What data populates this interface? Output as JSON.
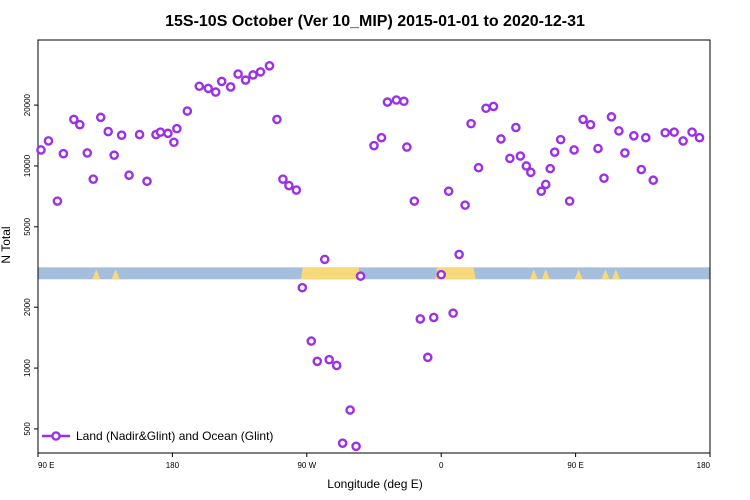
{
  "chart_data": {
    "type": "scatter",
    "title": "15S-10S October (Ver 10_MIP)   2015-01-01 to 2020-12-31",
    "xlabel": "Longitude (deg E)",
    "ylabel": "N Total",
    "x_axis_note": "longitude unwrapped from 90 E: values above 180 continue eastward past the dateline (270 = 90 W, 360 = 0, 450 = 90 E, 540 = 180)",
    "xlim": [
      90,
      540
    ],
    "ylim_log": [
      380,
      42000
    ],
    "y_scale": "log",
    "x_ticks": [
      {
        "value": 90,
        "label": "90 E"
      },
      {
        "value": 180,
        "label": "180"
      },
      {
        "value": 270,
        "label": "90 W"
      },
      {
        "value": 360,
        "label": "0"
      },
      {
        "value": 450,
        "label": "90 E"
      },
      {
        "value": 540,
        "label": "180"
      }
    ],
    "y_ticks": [
      {
        "value": 500,
        "label": "500"
      },
      {
        "value": 1000,
        "label": "1000"
      },
      {
        "value": 2000,
        "label": "2000"
      },
      {
        "value": 5000,
        "label": "5000"
      },
      {
        "value": 10000,
        "label": "10000"
      },
      {
        "value": 20000,
        "label": "20000"
      }
    ],
    "colors": {
      "points": "#9b30e8",
      "ocean_band": "#a5bedc",
      "land_band": "#f7d97c"
    },
    "band": {
      "y_range": [
        2750,
        3150
      ],
      "land_ranges": [
        [
          266,
          306
        ],
        [
          356,
          383
        ]
      ],
      "land_bumps": [
        129,
        142,
        422,
        430,
        452,
        470,
        477
      ]
    },
    "legend": {
      "position": "bottom-left",
      "label": "Land (Nadir&Glint) and Ocean (Glint)"
    },
    "series": [
      {
        "name": "Land (Nadir&Glint) and Ocean (Glint)",
        "points": [
          [
            92,
            12000
          ],
          [
            97,
            13300
          ],
          [
            103,
            6700
          ],
          [
            107,
            11500
          ],
          [
            114,
            17000
          ],
          [
            118,
            16000
          ],
          [
            123,
            11600
          ],
          [
            127,
            8600
          ],
          [
            132,
            17400
          ],
          [
            137,
            14800
          ],
          [
            141,
            11300
          ],
          [
            146,
            14200
          ],
          [
            151,
            9000
          ],
          [
            158,
            14300
          ],
          [
            163,
            8400
          ],
          [
            169,
            14300
          ],
          [
            172,
            14700
          ],
          [
            177,
            14500
          ],
          [
            181,
            13100
          ],
          [
            183,
            15300
          ],
          [
            190,
            18700
          ],
          [
            198,
            24800
          ],
          [
            204,
            24200
          ],
          [
            209,
            23200
          ],
          [
            213,
            26200
          ],
          [
            219,
            24600
          ],
          [
            224,
            28500
          ],
          [
            229,
            26600
          ],
          [
            234,
            28200
          ],
          [
            239,
            29200
          ],
          [
            245,
            31300
          ],
          [
            250,
            17000
          ],
          [
            254,
            8600
          ],
          [
            258,
            8000
          ],
          [
            263,
            7600
          ],
          [
            267,
            2500
          ],
          [
            273,
            1360
          ],
          [
            277,
            1080
          ],
          [
            282,
            3450
          ],
          [
            285,
            1100
          ],
          [
            290,
            1030
          ],
          [
            294,
            425
          ],
          [
            299,
            620
          ],
          [
            303,
            410
          ],
          [
            306,
            2850
          ],
          [
            315,
            12600
          ],
          [
            320,
            13800
          ],
          [
            324,
            20700
          ],
          [
            330,
            21200
          ],
          [
            335,
            20900
          ],
          [
            337,
            12400
          ],
          [
            342,
            6700
          ],
          [
            346,
            1750
          ],
          [
            351,
            1130
          ],
          [
            355,
            1780
          ],
          [
            360,
            2900
          ],
          [
            365,
            7500
          ],
          [
            368,
            1870
          ],
          [
            372,
            3650
          ],
          [
            376,
            6400
          ],
          [
            380,
            16200
          ],
          [
            385,
            9800
          ],
          [
            390,
            19300
          ],
          [
            395,
            19700
          ],
          [
            400,
            13600
          ],
          [
            406,
            10900
          ],
          [
            410,
            15500
          ],
          [
            413,
            11200
          ],
          [
            417,
            10000
          ],
          [
            420,
            9300
          ],
          [
            427,
            7500
          ],
          [
            430,
            8100
          ],
          [
            433,
            9700
          ],
          [
            436,
            11700
          ],
          [
            440,
            13500
          ],
          [
            446,
            6700
          ],
          [
            449,
            12000
          ],
          [
            455,
            17000
          ],
          [
            460,
            16000
          ],
          [
            465,
            12200
          ],
          [
            469,
            8700
          ],
          [
            474,
            17500
          ],
          [
            479,
            14900
          ],
          [
            483,
            11600
          ],
          [
            489,
            14100
          ],
          [
            494,
            9600
          ],
          [
            497,
            13800
          ],
          [
            502,
            8500
          ],
          [
            510,
            14600
          ],
          [
            516,
            14700
          ],
          [
            522,
            13300
          ],
          [
            528,
            14700
          ],
          [
            533,
            13800
          ]
        ]
      }
    ]
  }
}
